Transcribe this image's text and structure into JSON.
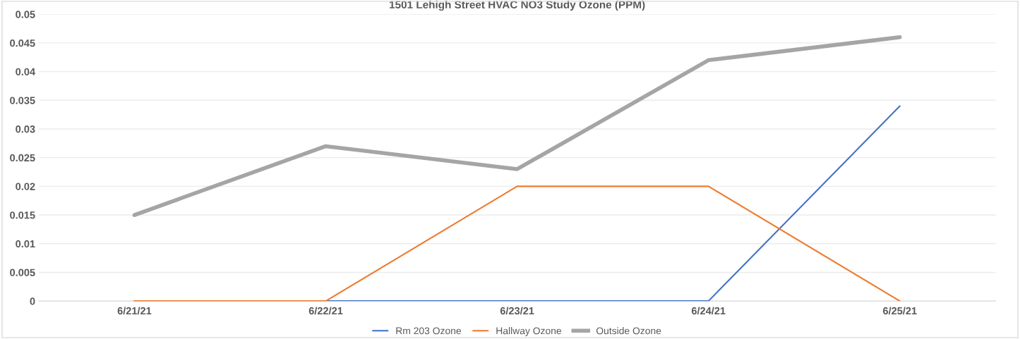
{
  "chart_data": {
    "type": "line",
    "title": "1501 Lehigh Street HVAC NO3 Study Ozone (PPM)",
    "categories": [
      "6/21/21",
      "6/22/21",
      "6/23/21",
      "6/24/21",
      "6/25/21"
    ],
    "series": [
      {
        "name": "Rm 203 Ozone",
        "color": "#4472c4",
        "values": [
          0,
          0,
          0,
          0,
          0.034
        ]
      },
      {
        "name": "Hallway Ozone",
        "color": "#ed7d31",
        "values": [
          0,
          0,
          0.02,
          0.02,
          0
        ]
      },
      {
        "name": "Outside Ozone",
        "color": "#a5a5a5",
        "values": [
          0.015,
          0.027,
          0.023,
          0.042,
          0.046
        ]
      }
    ],
    "ylim": [
      0,
      0.05
    ],
    "yticks": [
      {
        "value": 0,
        "label": "0"
      },
      {
        "value": 0.005,
        "label": "0.005"
      },
      {
        "value": 0.01,
        "label": "0.01"
      },
      {
        "value": 0.015,
        "label": "0.015"
      },
      {
        "value": 0.02,
        "label": "0.02"
      },
      {
        "value": 0.025,
        "label": "0.025"
      },
      {
        "value": 0.03,
        "label": "0.03"
      },
      {
        "value": 0.035,
        "label": "0.035"
      },
      {
        "value": 0.04,
        "label": "0.04"
      },
      {
        "value": 0.045,
        "label": "0.045"
      },
      {
        "value": 0.05,
        "label": "0.05"
      }
    ],
    "grid": "y",
    "legend": "bottom",
    "marker": "none",
    "line_style": "solid"
  }
}
